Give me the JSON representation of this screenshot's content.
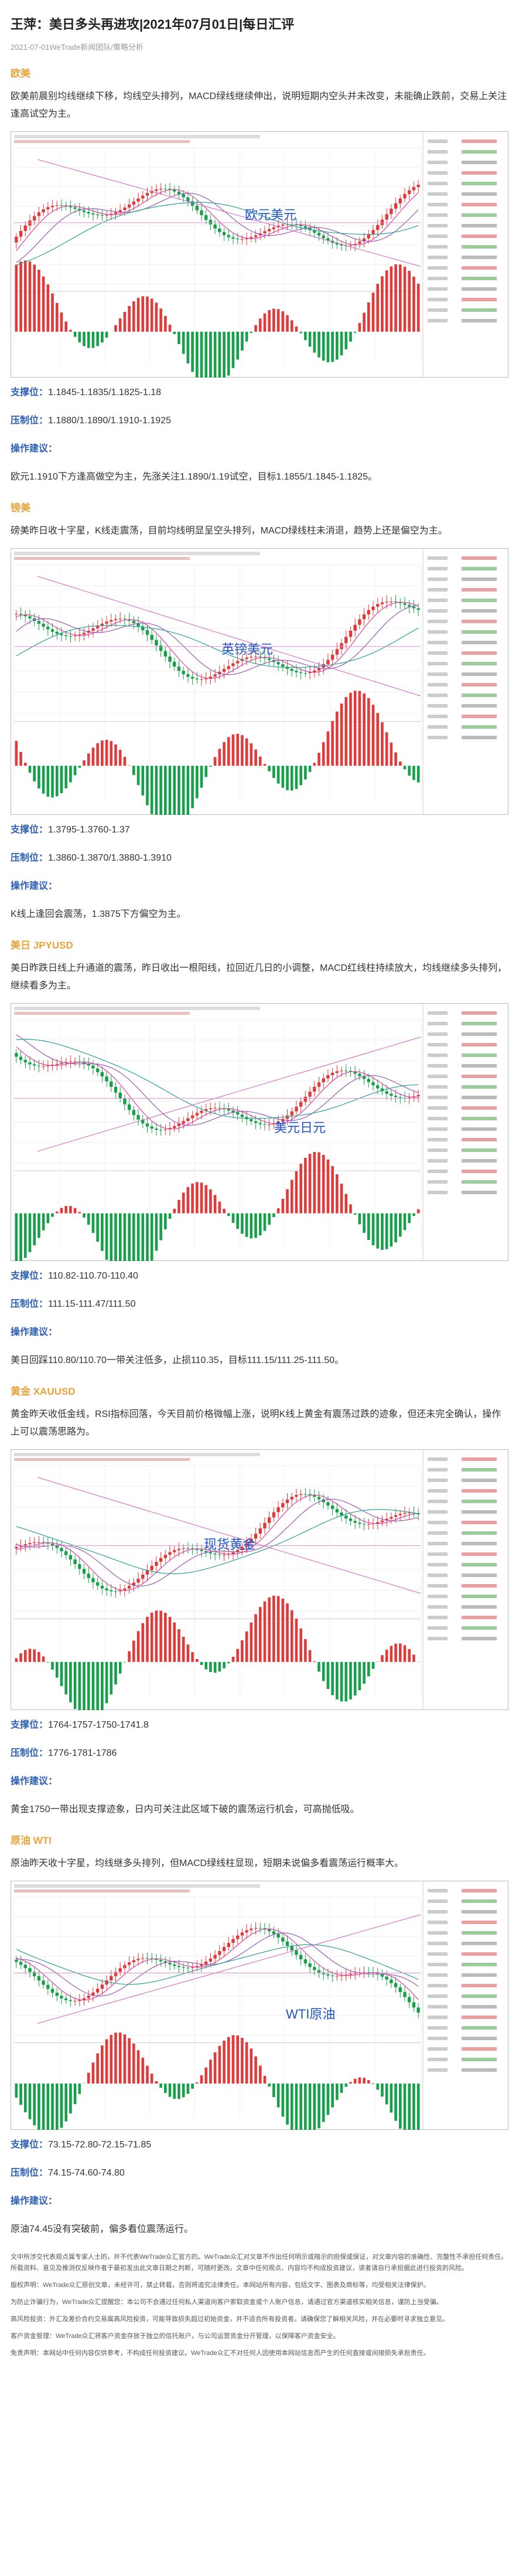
{
  "header": {
    "title": "王萍：美日多头再进攻|2021年07月01日|每日汇评",
    "date": "2021-07-01WeTrade新闻团队/策略分析"
  },
  "sections": [
    {
      "heading": "欧美",
      "paragraph": "欧美前晨别均线继续下移，均线空头排列，MACD绿线继续伸出，说明短期内空头并未改变，未能确止跌前，交易上关注逢高试空为主。",
      "chart_label": "欧元美元",
      "support_label": "支撑位：",
      "support": "1.1845-1.1835/1.1825-1.18",
      "resistance_label": "压制位：",
      "resistance": "1.1880/1.1890/1.1910-1.1925",
      "advice_label": "操作建议：",
      "advice": "欧元1.1910下方逢高做空为主，先涨关注1.1890/1.19试空，目标1.1855/1.1845-1.1825。"
    },
    {
      "heading": "镑美",
      "paragraph": "磅美昨日收十字星，K线走震荡，目前均线明显呈空头排列，MACD绿线柱未消退，趋势上还是偏空为主。",
      "chart_label": "英镑美元",
      "support_label": "支撑位：",
      "support": "1.3795-1.3760-1.37",
      "resistance_label": "压制位：",
      "resistance": "1.3860-1.3870/1.3880-1.3910",
      "advice_label": "操作建议：",
      "advice": "K线上逢回会震荡，1.3875下方偏空为主。"
    },
    {
      "heading": "美日 JPYUSD",
      "paragraph": "美日昨跌日线上升通道的震荡，昨日收出一根阳线，拉回近几日的小调整，MACD红线柱持续放大，均线继续多头排列，继续看多为主。",
      "chart_label": "美元日元",
      "support_label": "支撑位：",
      "support": "110.82-110.70-110.40",
      "resistance_label": "压制位：",
      "resistance": "111.15-111.47/111.50",
      "advice_label": "操作建议：",
      "advice": "美日回踩110.80/110.70一带关注低多，止损110.35，目标111.15/111.25-111.50。"
    },
    {
      "heading": "黄金 XAUUSD",
      "paragraph": "黄金昨天收低金线，RSI指标回落，今天目前价格微幅上涨，说明K线上黄金有震荡过跌的迹象，但还未完全确认，操作上可以震荡思路为。",
      "chart_label": "现货黄金",
      "support_label": "支撑位：",
      "support": "1764-1757-1750-1741.8",
      "resistance_label": "压制位：",
      "resistance": "1776-1781-1786",
      "advice_label": "操作建议：",
      "advice": "黄金1750一带出现支撑迹象，日内可关注此区域下破的震荡运行机会，可高抛低吸。"
    },
    {
      "heading": "原油 WTI",
      "paragraph": "原油昨天收十字星，均线继多头排列，但MACD绿线柱显现，短期未说偏多看震荡运行概率大。",
      "chart_label": "WTI原油",
      "support_label": "支撑位：",
      "support": "73.15-72.80-72.15-71.85",
      "resistance_label": "压制位：",
      "resistance": "74.15-74.60-74.80",
      "advice_label": "操作建议：",
      "advice": "原油74.45没有突破前，偏多看位震荡运行。"
    }
  ],
  "disclaimer": [
    "文中所涉交代表观点属专家人士的，并不代表WeTrade众汇官方的。WeTrade众汇对文章不作出任何明示或暗示的担保或保证，对文章内容的准确性、完整性不承担任何责任。所载资料、意见及推测仅反映作者于最初发出此文章日期之判断，可随时更改。文章中任何观点、内容均不构成投资建议，读者请自行承担据此进行投资的风险。",
    "版权声明：WeTrade众汇原创文章，未经许可，禁止转载，否则将追究法律责任。本网站所有内容，包括文字、图表及商标等，均受相关法律保护。",
    "为防止诈骗行为，WeTrade众汇提醒您：本公司不会通过任何私人渠道向客户索取资金或个人账户信息，请通过官方渠道核实相关信息，谨防上当受骗。",
    "高风险投资：外汇及差价合约交易属高风险投资，可能导致损失超过初始资金，并不适合所有投资者。请确保您了解相关风险，并在必要时寻求独立意见。",
    "客户资金管理：WeTrade众汇将客户资金存放于独立的信托账户，与公司运营资金分开管理，以保障客户资金安全。",
    "免责声明：本网站中任何内容仅供参考，不构成任何投资建议。WeTrade众汇不对任何人因使用本网站信息而产生的任何直接或间接损失承担责任。"
  ]
}
